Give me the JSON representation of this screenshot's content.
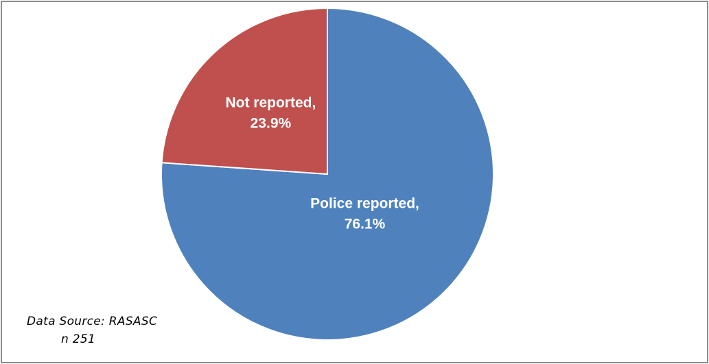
{
  "chart_data": {
    "type": "pie",
    "slices": [
      {
        "category": "Police reported",
        "label": "Police reported,",
        "value_label": "76.1%",
        "value": 76.1,
        "color": "#4f81bd"
      },
      {
        "category": "Not reported",
        "label": "Not reported,",
        "value_label": "23.9%",
        "value": 23.9,
        "color": "#c0504d"
      }
    ],
    "start_angle_deg": 0,
    "direction": "clockwise",
    "slice_border_color": "#ffffff"
  },
  "source": {
    "line1": "Data Source: RASASC",
    "line2": "n  251"
  }
}
